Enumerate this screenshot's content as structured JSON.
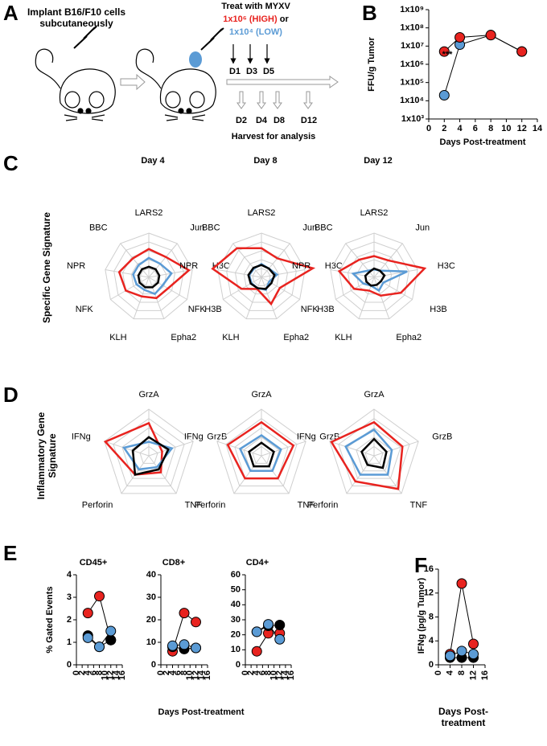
{
  "panels": [
    "A",
    "B",
    "C",
    "D",
    "E",
    "F"
  ],
  "diagram": {
    "step1": "Implant B16/F10 cells subcutaneously",
    "treat": "Treat with MYXV",
    "high_dose": "1x10⁶ (HIGH)",
    "or": "or",
    "low_dose": "1x10⁴ (LOW)",
    "treat_days": [
      "D1",
      "D3",
      "D5"
    ],
    "harvest_days": [
      "D2",
      "D4",
      "D8",
      "D12"
    ],
    "harvest": "Harvest for analysis"
  },
  "chart_data": [
    {
      "type": "line",
      "log_y": true,
      "ylabel": "FFU/g Tumor",
      "xlabel": "Days Post-treatment",
      "annotation": "***",
      "x": [
        2,
        4,
        8,
        12
      ],
      "xlim": [
        0,
        14
      ],
      "xticks": [
        0,
        2,
        4,
        6,
        8,
        10,
        12,
        14
      ],
      "ylim": [
        1000,
        1000000000
      ],
      "yticks": [
        {
          "value": 1000,
          "label": "1x10³"
        },
        {
          "value": 10000,
          "label": "1x10⁴"
        },
        {
          "value": 100000,
          "label": "1x10⁵"
        },
        {
          "value": 1000000,
          "label": "1x10⁶"
        },
        {
          "value": 10000000,
          "label": "1x10⁷"
        },
        {
          "value": 100000000,
          "label": "1x10⁸"
        },
        {
          "value": 1000000000,
          "label": "1x10⁹"
        }
      ],
      "series": [
        {
          "color": "#5b9bd5",
          "values": [
            20000,
            12000000,
            40000000,
            5000000
          ]
        },
        {
          "color": "#e8231f",
          "values": [
            5000000,
            30000000,
            40000000,
            5000000
          ]
        }
      ]
    },
    {
      "type": "radar",
      "title": "Day 4",
      "ylabel": "Specific Gene Signature",
      "axes": [
        "LARS2",
        "Jun",
        "H3C",
        "H3B",
        "Epha2",
        "KLH",
        "NFK",
        "NPR",
        "BBC"
      ],
      "rlim": [
        0,
        5
      ],
      "rticks": [
        1,
        2,
        3,
        4,
        5
      ],
      "series": [
        {
          "color": "#e8231f",
          "values": [
            3.2,
            3.0,
            4.6,
            2.5,
            2.5,
            2.3,
            3.0,
            3.4,
            2.8
          ]
        },
        {
          "color": "#5b9bd5",
          "values": [
            2.2,
            2.0,
            2.6,
            1.8,
            2.0,
            1.5,
            1.6,
            1.8,
            1.8
          ]
        },
        {
          "color": "#000000",
          "values": [
            1.2,
            1.2,
            1.2,
            1.2,
            1.2,
            1.2,
            1.2,
            1.2,
            1.2
          ]
        }
      ]
    },
    {
      "type": "radar",
      "title": "Day 8",
      "axes": [
        "LARS2",
        "Jun",
        "H3C",
        "H3B",
        "Epha2",
        "KLH",
        "NFK",
        "NPR",
        "BBC"
      ],
      "rlim": [
        0,
        5
      ],
      "rticks": [
        1,
        2,
        3,
        4,
        5
      ],
      "series": [
        {
          "color": "#e8231f",
          "values": [
            3.3,
            2.8,
            5.9,
            2.4,
            3.2,
            1.4,
            2.6,
            5.6,
            4.3
          ]
        },
        {
          "color": "#5b9bd5",
          "values": [
            1.5,
            1.3,
            1.8,
            1.0,
            1.5,
            1.3,
            1.3,
            1.4,
            1.3
          ]
        },
        {
          "color": "#000000",
          "values": [
            1.4,
            1.3,
            1.5,
            1.3,
            1.4,
            1.3,
            1.4,
            1.5,
            1.4
          ]
        }
      ]
    },
    {
      "type": "radar",
      "title": "Day 12",
      "axes": [
        "LARS2",
        "Jun",
        "H3C",
        "H3B",
        "Epha2",
        "KLH",
        "NFK",
        "NPR",
        "BBC"
      ],
      "rlim": [
        0,
        5
      ],
      "rticks": [
        1,
        2,
        3,
        4,
        5
      ],
      "series": [
        {
          "color": "#e8231f",
          "values": [
            2.4,
            2.5,
            5.8,
            3.5,
            2.2,
            1.6,
            2.6,
            4.0,
            2.6
          ]
        },
        {
          "color": "#5b9bd5",
          "values": [
            0.9,
            1.0,
            3.8,
            1.2,
            1.6,
            1.0,
            1.4,
            2.4,
            1.0
          ]
        },
        {
          "color": "#000000",
          "values": [
            1.0,
            1.0,
            1.2,
            0.9,
            0.9,
            1.0,
            1.0,
            1.0,
            0.8
          ]
        }
      ]
    },
    {
      "type": "radar",
      "ylabel": "Inflammatory Gene Signature",
      "axes": [
        "GrzA",
        "GrzB",
        "TNF",
        "Perforin",
        "IFNg"
      ],
      "rlim": [
        0,
        5
      ],
      "rticks": [
        1,
        2,
        3,
        4,
        5
      ],
      "series": [
        {
          "color": "#e8231f",
          "values": [
            3.5,
            1.5,
            2.2,
            2.5,
            4.9
          ]
        },
        {
          "color": "#5b9bd5",
          "values": [
            1.5,
            2.6,
            1.5,
            1.8,
            2.8
          ]
        },
        {
          "color": "#000000",
          "values": [
            2.0,
            2.2,
            1.8,
            2.5,
            1.8
          ]
        }
      ]
    },
    {
      "type": "radar",
      "axes": [
        "GrzA",
        "GrzB",
        "TNF",
        "Perforin",
        "IFNg"
      ],
      "rlim": [
        0,
        5
      ],
      "rticks": [
        1,
        2,
        3,
        4,
        5
      ],
      "series": [
        {
          "color": "#e8231f",
          "values": [
            3.6,
            3.6,
            3.0,
            3.0,
            3.8
          ]
        },
        {
          "color": "#5b9bd5",
          "values": [
            2.2,
            2.2,
            2.0,
            2.0,
            2.4
          ]
        },
        {
          "color": "#000000",
          "values": [
            1.4,
            1.4,
            1.4,
            1.4,
            1.4
          ]
        }
      ]
    },
    {
      "type": "radar",
      "axes": [
        "GrzA",
        "GrzB",
        "TNF",
        "Perforin",
        "IFNg"
      ],
      "rlim": [
        0,
        5
      ],
      "rticks": [
        1,
        2,
        3,
        4,
        5
      ],
      "series": [
        {
          "color": "#e8231f",
          "values": [
            3.6,
            3.2,
            4.4,
            3.4,
            4.8
          ]
        },
        {
          "color": "#5b9bd5",
          "values": [
            2.8,
            2.0,
            2.5,
            2.5,
            3.2
          ]
        },
        {
          "color": "#000000",
          "values": [
            1.8,
            1.4,
            1.6,
            1.2,
            1.4
          ]
        }
      ]
    },
    {
      "type": "line",
      "title": "CD45+",
      "ylabel": "% Gated Events",
      "x": [
        4,
        8,
        12
      ],
      "xlim": [
        0,
        16
      ],
      "xticks": [
        0,
        2,
        4,
        6,
        8,
        10,
        12,
        14,
        16
      ],
      "ylim": [
        0,
        4
      ],
      "yticks": [
        0,
        1,
        2,
        3,
        4
      ],
      "series": [
        {
          "color": "#e8231f",
          "values": [
            2.3,
            3.05,
            1.1
          ]
        },
        {
          "color": "#000000",
          "values": [
            1.3,
            0.8,
            1.1
          ]
        },
        {
          "color": "#5b9bd5",
          "values": [
            1.2,
            0.8,
            1.5
          ]
        }
      ]
    },
    {
      "type": "line",
      "title": "CD8+",
      "xlabel": "Days Post-treatment",
      "x": [
        4,
        8,
        12
      ],
      "xlim": [
        0,
        16
      ],
      "xticks": [
        0,
        2,
        4,
        6,
        8,
        10,
        12,
        14,
        16
      ],
      "ylim": [
        0,
        40
      ],
      "yticks": [
        0,
        10,
        20,
        30,
        40
      ],
      "series": [
        {
          "color": "#e8231f",
          "values": [
            6,
            23,
            19
          ]
        },
        {
          "color": "#000000",
          "values": [
            8,
            7,
            7.5
          ]
        },
        {
          "color": "#5b9bd5",
          "values": [
            8.5,
            9,
            7.5
          ]
        }
      ]
    },
    {
      "type": "line",
      "title": "CD4+",
      "x": [
        4,
        8,
        12
      ],
      "xlim": [
        0,
        16
      ],
      "xticks": [
        0,
        2,
        4,
        6,
        8,
        10,
        12,
        14,
        16
      ],
      "ylim": [
        0,
        60
      ],
      "yticks": [
        0,
        10,
        20,
        30,
        40,
        50,
        60
      ],
      "series": [
        {
          "color": "#e8231f",
          "values": [
            9,
            21,
            21
          ]
        },
        {
          "color": "#000000",
          "values": [
            22,
            26,
            26.5
          ]
        },
        {
          "color": "#5b9bd5",
          "values": [
            22,
            27,
            17
          ]
        }
      ]
    },
    {
      "type": "line",
      "ylabel": "IFNg (pg/g Tumor)",
      "xlabel": "Days Post-treatment",
      "x": [
        4,
        8,
        12
      ],
      "xlim": [
        0,
        16
      ],
      "xticks": [
        0,
        4,
        8,
        12,
        16
      ],
      "ylim": [
        0,
        16
      ],
      "yticks": [
        0,
        4,
        8,
        12,
        16
      ],
      "series": [
        {
          "color": "#e8231f",
          "values": [
            1.8,
            13.6,
            3.5
          ]
        },
        {
          "color": "#000000",
          "values": [
            1.2,
            1.2,
            1.2
          ]
        },
        {
          "color": "#5b9bd5",
          "values": [
            1.5,
            2.3,
            1.8
          ]
        }
      ]
    }
  ]
}
